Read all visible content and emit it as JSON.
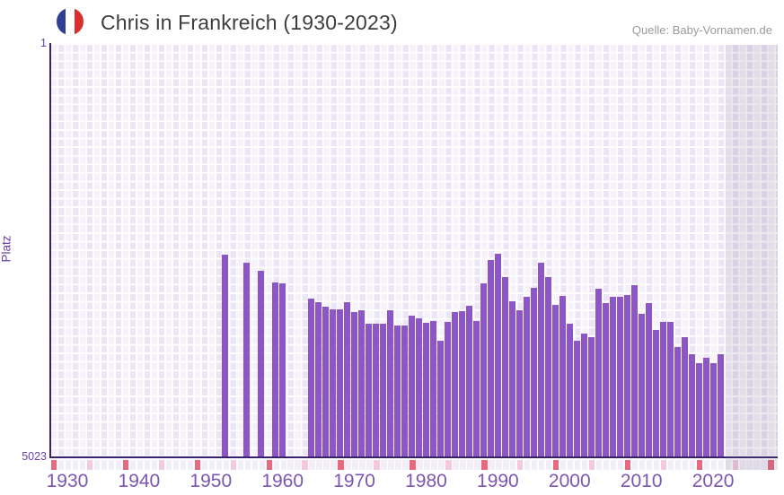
{
  "header": {
    "title": "Chris in Frankreich (1930-2023)",
    "source": "Quelle: Baby-Vornamen.de"
  },
  "axes": {
    "y_label": "Platz",
    "y_top_tick": "1",
    "y_bottom_tick": "5023",
    "x_ticks": [
      "1930",
      "1940",
      "1950",
      "1960",
      "1970",
      "1980",
      "1990",
      "2000",
      "2010",
      "2020"
    ]
  },
  "chart_data": {
    "type": "bar",
    "title": "Chris in Frankreich (1930-2023)",
    "xlabel": "",
    "ylabel": "Platz",
    "y_axis": {
      "top_value": 1,
      "bottom_value": 5023,
      "inverted_rank_axis": true
    },
    "x_axis": {
      "start_year": 1928,
      "end_year": 2028,
      "ticks": [
        1930,
        1940,
        1950,
        1960,
        1970,
        1980,
        1990,
        2000,
        2010,
        2020
      ]
    },
    "no_data_band": {
      "from_year": 2022,
      "to_year": 2028
    },
    "legend": "none",
    "grid": "lavender cell grid with white lines",
    "points": [
      {
        "year": 1952,
        "rank": 2560
      },
      {
        "year": 1955,
        "rank": 2655
      },
      {
        "year": 1957,
        "rank": 2750
      },
      {
        "year": 1959,
        "rank": 2895
      },
      {
        "year": 1960,
        "rank": 2900
      },
      {
        "year": 1964,
        "rank": 3095
      },
      {
        "year": 1965,
        "rank": 3135
      },
      {
        "year": 1966,
        "rank": 3190
      },
      {
        "year": 1967,
        "rank": 3220
      },
      {
        "year": 1968,
        "rank": 3220
      },
      {
        "year": 1969,
        "rank": 3135
      },
      {
        "year": 1970,
        "rank": 3255
      },
      {
        "year": 1971,
        "rank": 3230
      },
      {
        "year": 1972,
        "rank": 3395
      },
      {
        "year": 1973,
        "rank": 3400
      },
      {
        "year": 1974,
        "rank": 3395
      },
      {
        "year": 1975,
        "rank": 3230
      },
      {
        "year": 1976,
        "rank": 3415
      },
      {
        "year": 1977,
        "rank": 3420
      },
      {
        "year": 1978,
        "rank": 3300
      },
      {
        "year": 1979,
        "rank": 3335
      },
      {
        "year": 1980,
        "rank": 3385
      },
      {
        "year": 1981,
        "rank": 3365
      },
      {
        "year": 1982,
        "rank": 3600
      },
      {
        "year": 1983,
        "rank": 3375
      },
      {
        "year": 1984,
        "rank": 3255
      },
      {
        "year": 1985,
        "rank": 3245
      },
      {
        "year": 1986,
        "rank": 3180
      },
      {
        "year": 1987,
        "rank": 3365
      },
      {
        "year": 1988,
        "rank": 2910
      },
      {
        "year": 1989,
        "rank": 2620
      },
      {
        "year": 1990,
        "rank": 2550
      },
      {
        "year": 1991,
        "rank": 2830
      },
      {
        "year": 1992,
        "rank": 3125
      },
      {
        "year": 1993,
        "rank": 3230
      },
      {
        "year": 1994,
        "rank": 3065
      },
      {
        "year": 1995,
        "rank": 2960
      },
      {
        "year": 1996,
        "rank": 2655
      },
      {
        "year": 1997,
        "rank": 2830
      },
      {
        "year": 1998,
        "rank": 3165
      },
      {
        "year": 1999,
        "rank": 3055
      },
      {
        "year": 2000,
        "rank": 3395
      },
      {
        "year": 2001,
        "rank": 3605
      },
      {
        "year": 2002,
        "rank": 3515
      },
      {
        "year": 2003,
        "rank": 3555
      },
      {
        "year": 2004,
        "rank": 2975
      },
      {
        "year": 2005,
        "rank": 3140
      },
      {
        "year": 2006,
        "rank": 3065
      },
      {
        "year": 2007,
        "rank": 3065
      },
      {
        "year": 2008,
        "rank": 3045
      },
      {
        "year": 2009,
        "rank": 2925
      },
      {
        "year": 2010,
        "rank": 3280
      },
      {
        "year": 2011,
        "rank": 3150
      },
      {
        "year": 2012,
        "rank": 3470
      },
      {
        "year": 2013,
        "rank": 3370
      },
      {
        "year": 2014,
        "rank": 3375
      },
      {
        "year": 2015,
        "rank": 3675
      },
      {
        "year": 2016,
        "rank": 3560
      },
      {
        "year": 2017,
        "rank": 3770
      },
      {
        "year": 2018,
        "rank": 3875
      },
      {
        "year": 2019,
        "rank": 3810
      },
      {
        "year": 2020,
        "rank": 3875
      },
      {
        "year": 2021,
        "rank": 3770
      }
    ],
    "decade_strip": {
      "red_years": [
        1928,
        1938,
        1948,
        1958,
        1968,
        1978,
        1988,
        1998,
        2008,
        2018,
        2028
      ],
      "pink_years": [
        1933,
        1943,
        1953,
        1963,
        1973,
        1983,
        1993,
        2003,
        2013,
        2023
      ]
    }
  },
  "colors": {
    "bar": "#8d56c6",
    "axis_line": "#3b2070",
    "x_tick_label": "#7d55b2",
    "y_tick_label": "#6b3fa6",
    "plot_bg_cell": "#ece5f5",
    "no_data_band": "rgba(108,98,134,0.14)",
    "strip_red": "#e8697d",
    "strip_pink": "#f2cadb",
    "title_text": "#3d3d3d",
    "source_text": "#9b9b9b",
    "flag_blue": "#2e3f94",
    "flag_red": "#d92f33"
  }
}
